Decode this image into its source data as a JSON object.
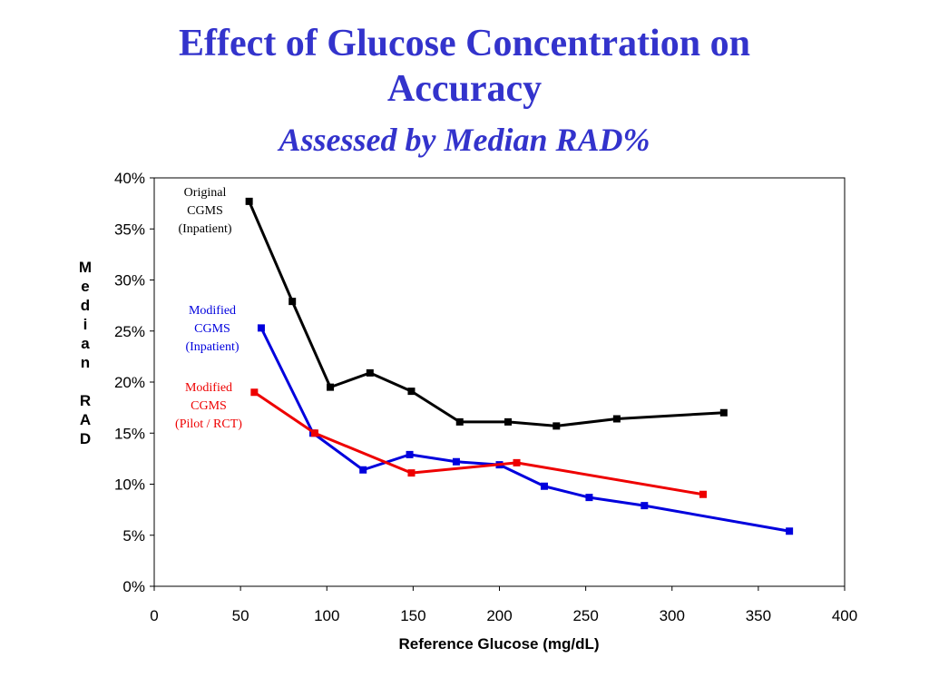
{
  "slide": {
    "title_line1": "Effect of Glucose Concentration on",
    "title_line2": "Accuracy",
    "subtitle": "Assessed by Median RAD%"
  },
  "chart_data": {
    "type": "line",
    "title": "",
    "xlabel": "Reference Glucose (mg/dL)",
    "ylabel": "Median RAD",
    "xlim": [
      0,
      400
    ],
    "ylim": [
      0,
      40
    ],
    "x_ticks": [
      "0",
      "50",
      "100",
      "150",
      "200",
      "250",
      "300",
      "350",
      "400"
    ],
    "y_ticks": [
      "0%",
      "5%",
      "10%",
      "15%",
      "20%",
      "25%",
      "30%",
      "35%",
      "40%"
    ],
    "grid": false,
    "legend": "labels next to series",
    "series": [
      {
        "name": "Original CGMS (Inpatient)",
        "label_lines": [
          "Original",
          "CGMS",
          "(Inpatient)"
        ],
        "color": "#000000",
        "points": [
          [
            55,
            37.7
          ],
          [
            80,
            27.9
          ],
          [
            102,
            19.5
          ],
          [
            125,
            20.9
          ],
          [
            149,
            19.1
          ],
          [
            177,
            16.1
          ],
          [
            205,
            16.1
          ],
          [
            233,
            15.7
          ],
          [
            268,
            16.4
          ],
          [
            330,
            17.0
          ]
        ]
      },
      {
        "name": "Modified CGMS (Inpatient)",
        "label_lines": [
          "Modified",
          "CGMS",
          "(Inpatient)"
        ],
        "color": "#0000dd",
        "points": [
          [
            62,
            25.3
          ],
          [
            92,
            15.0
          ],
          [
            121,
            11.4
          ],
          [
            148,
            12.9
          ],
          [
            175,
            12.2
          ],
          [
            200,
            11.9
          ],
          [
            226,
            9.8
          ],
          [
            252,
            8.7
          ],
          [
            284,
            7.9
          ],
          [
            368,
            5.4
          ]
        ]
      },
      {
        "name": "Modified CGMS (Pilot / RCT)",
        "label_lines": [
          "Modified",
          "CGMS",
          "(Pilot / RCT)"
        ],
        "color": "#ee0000",
        "points": [
          [
            58,
            19.0
          ],
          [
            93,
            15.0
          ],
          [
            149,
            11.1
          ],
          [
            210,
            12.1
          ],
          [
            318,
            9.0
          ]
        ]
      }
    ]
  }
}
